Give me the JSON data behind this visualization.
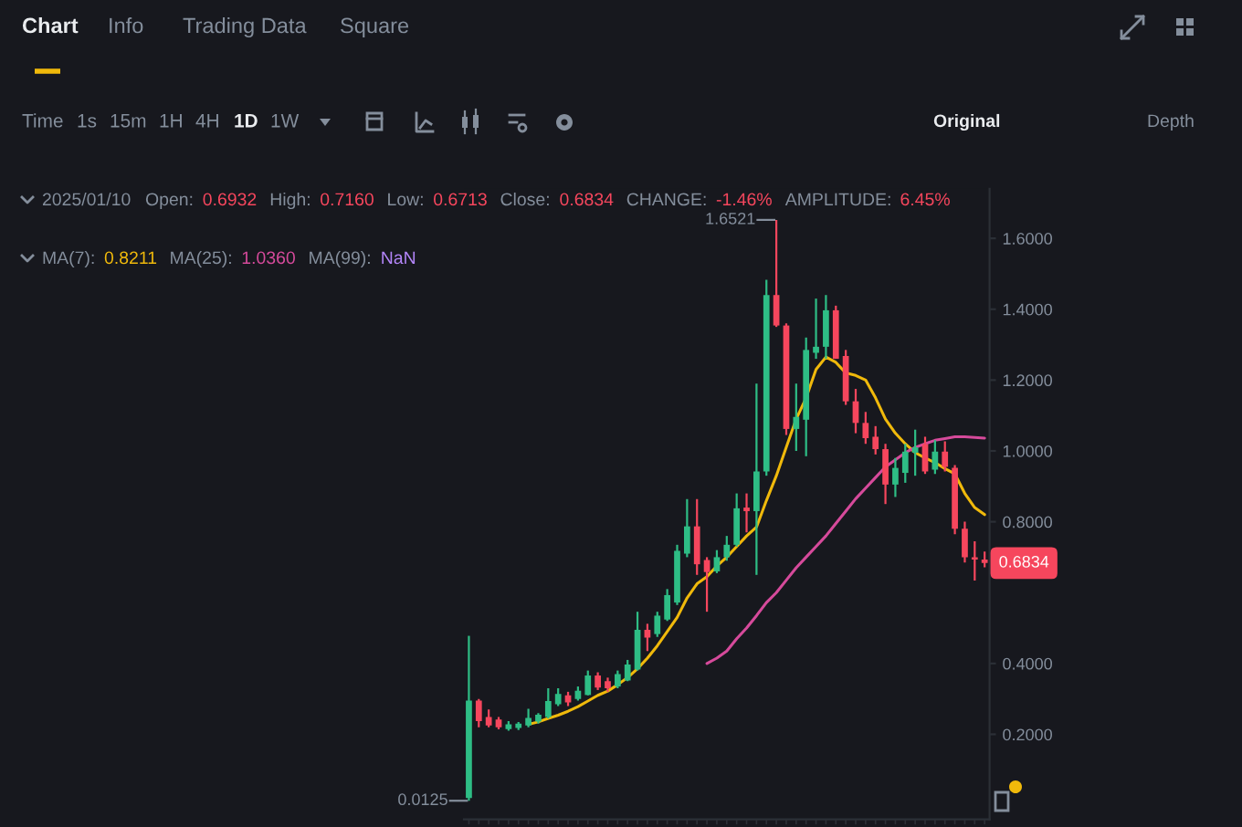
{
  "chart_data": {
    "type": "candlestick",
    "categories": [
      null,
      null,
      null,
      null,
      null,
      null,
      null,
      null,
      null,
      null,
      null,
      null,
      null,
      null,
      null,
      null,
      null,
      null,
      null,
      null,
      null,
      null,
      null,
      null,
      null,
      null,
      null,
      null,
      null,
      null,
      null,
      null,
      null,
      null,
      null,
      null,
      null,
      null,
      null,
      null,
      null,
      null,
      null,
      null,
      null,
      null,
      null,
      null,
      null,
      null,
      null,
      null,
      null
    ],
    "ohlc": [
      [
        0.02,
        0.478,
        0.0125,
        0.295
      ],
      [
        0.295,
        0.3,
        0.22,
        0.237
      ],
      [
        0.249,
        0.27,
        0.22,
        0.225
      ],
      [
        0.242,
        0.249,
        0.214,
        0.22
      ],
      [
        0.215,
        0.237,
        0.21,
        0.228
      ],
      [
        0.218,
        0.235,
        0.212,
        0.23
      ],
      [
        0.225,
        0.272,
        0.22,
        0.246
      ],
      [
        0.236,
        0.26,
        0.23,
        0.255
      ],
      [
        0.249,
        0.33,
        0.245,
        0.294
      ],
      [
        0.285,
        0.33,
        0.28,
        0.314
      ],
      [
        0.31,
        0.32,
        0.28,
        0.29
      ],
      [
        0.3,
        0.335,
        0.295,
        0.323
      ],
      [
        0.311,
        0.38,
        0.31,
        0.366
      ],
      [
        0.366,
        0.375,
        0.325,
        0.332
      ],
      [
        0.35,
        0.36,
        0.32,
        0.33
      ],
      [
        0.335,
        0.38,
        0.33,
        0.37
      ],
      [
        0.352,
        0.41,
        0.35,
        0.397
      ],
      [
        0.383,
        0.546,
        0.38,
        0.495
      ],
      [
        0.495,
        0.512,
        0.435,
        0.473
      ],
      [
        0.483,
        0.546,
        0.475,
        0.535
      ],
      [
        0.524,
        0.61,
        0.52,
        0.593
      ],
      [
        0.572,
        0.735,
        0.565,
        0.718
      ],
      [
        0.71,
        0.864,
        0.7,
        0.787
      ],
      [
        0.787,
        0.864,
        0.65,
        0.68
      ],
      [
        0.692,
        0.7,
        0.546,
        0.658
      ],
      [
        0.66,
        0.72,
        0.655,
        0.7
      ],
      [
        0.7,
        0.76,
        0.69,
        0.735
      ],
      [
        0.735,
        0.88,
        0.73,
        0.838
      ],
      [
        0.84,
        0.88,
        0.77,
        0.83
      ],
      [
        0.83,
        1.19,
        0.65,
        0.942
      ],
      [
        0.942,
        1.483,
        0.93,
        1.44
      ],
      [
        1.44,
        1.6521,
        1.35,
        1.354
      ],
      [
        1.354,
        1.36,
        1.045,
        1.062
      ],
      [
        1.062,
        1.19,
        1.0,
        1.096
      ],
      [
        1.088,
        1.32,
        0.985,
        1.285
      ],
      [
        1.277,
        1.43,
        1.26,
        1.294
      ],
      [
        1.294,
        1.44,
        1.26,
        1.397
      ],
      [
        1.397,
        1.41,
        1.26,
        1.26
      ],
      [
        1.268,
        1.285,
        1.13,
        1.14
      ],
      [
        1.14,
        1.175,
        1.05,
        1.079
      ],
      [
        1.079,
        1.11,
        1.02,
        1.036
      ],
      [
        1.04,
        1.07,
        0.99,
        1.005
      ],
      [
        1.005,
        1.02,
        0.85,
        0.905
      ],
      [
        0.905,
        0.98,
        0.87,
        0.952
      ],
      [
        0.938,
        1.02,
        0.91,
        0.998
      ],
      [
        0.995,
        1.06,
        0.93,
        1.01
      ],
      [
        1.019,
        1.04,
        0.935,
        0.942
      ],
      [
        0.947,
        1.03,
        0.935,
        0.998
      ],
      [
        0.998,
        1.027,
        0.942,
        0.955
      ],
      [
        0.952,
        0.96,
        0.765,
        0.78
      ],
      [
        0.78,
        0.8,
        0.685,
        0.7
      ],
      [
        0.7,
        0.745,
        0.634,
        0.6932
      ],
      [
        0.6932,
        0.716,
        0.6713,
        0.6834
      ]
    ],
    "colors": [
      "#2ebd85",
      "#f6465d",
      "#f6465d",
      "#f6465d",
      "#2ebd85",
      "#2ebd85",
      "#2ebd85",
      "#2ebd85",
      "#2ebd85",
      "#2ebd85",
      "#f6465d",
      "#2ebd85",
      "#2ebd85",
      "#f6465d",
      "#f6465d",
      "#2ebd85",
      "#2ebd85",
      "#2ebd85",
      "#f6465d",
      "#2ebd85",
      "#2ebd85",
      "#2ebd85",
      "#2ebd85",
      "#f6465d",
      "#f6465d",
      "#2ebd85",
      "#2ebd85",
      "#2ebd85",
      "#f6465d",
      "#2ebd85",
      "#2ebd85",
      "#f6465d",
      "#f6465d",
      "#2ebd85",
      "#2ebd85",
      "#2ebd85",
      "#2ebd85",
      "#f6465d",
      "#f6465d",
      "#f6465d",
      "#f6465d",
      "#f6465d",
      "#f6465d",
      "#2ebd85",
      "#2ebd85",
      "#2ebd85",
      "#f6465d",
      "#2ebd85",
      "#f6465d",
      "#f6465d",
      "#f6465d",
      "#f6465d",
      "#f6465d"
    ],
    "series": [
      {
        "type": "line",
        "color": "#f0b90b",
        "values": [
          null,
          null,
          null,
          null,
          null,
          null,
          0.228,
          0.235,
          0.245,
          0.254,
          0.265,
          0.278,
          0.294,
          0.31,
          0.322,
          0.34,
          0.36,
          0.385,
          0.415,
          0.45,
          0.49,
          0.53,
          0.585,
          0.625,
          0.645,
          0.675,
          0.7,
          0.73,
          0.76,
          0.785,
          0.86,
          0.93,
          1.01,
          1.09,
          1.15,
          1.23,
          1.265,
          1.25,
          1.22,
          1.213,
          1.2,
          1.15,
          1.09,
          1.05,
          1.02,
          0.995,
          0.98,
          0.967,
          0.95,
          0.935,
          0.88,
          0.84,
          0.82
        ]
      },
      {
        "type": "line",
        "color": "#d64a9b",
        "values": [
          null,
          null,
          null,
          null,
          null,
          null,
          null,
          null,
          null,
          null,
          null,
          null,
          null,
          null,
          null,
          null,
          null,
          null,
          null,
          null,
          null,
          null,
          null,
          null,
          0.4,
          0.415,
          0.435,
          0.47,
          0.5,
          0.535,
          0.572,
          0.6,
          0.635,
          0.67,
          0.7,
          0.73,
          0.76,
          0.795,
          0.83,
          0.865,
          0.895,
          0.925,
          0.955,
          0.975,
          0.995,
          1.01,
          1.02,
          1.03,
          1.035,
          1.04,
          1.04,
          1.038,
          1.036
        ]
      }
    ],
    "ylim": [
      -0.04,
      1.74
    ],
    "yticks": [
      {
        "value": 0.2,
        "label": "0.2000"
      },
      {
        "value": 0.4,
        "label": "0.4000"
      },
      {
        "value": 0.8,
        "label": "0.8000"
      },
      {
        "value": 1.0,
        "label": "1.0000"
      },
      {
        "value": 1.2,
        "label": "1.2000"
      },
      {
        "value": 1.4,
        "label": "1.4000"
      },
      {
        "value": 1.6,
        "label": "1.6000"
      }
    ],
    "tick_labels": "y",
    "annotations": [
      "Chart",
      "Info",
      "Trading Data",
      "Square",
      "Time",
      "1s",
      "15m",
      "1H",
      "4H",
      "1D",
      "1W",
      "Original",
      "Depth",
      "2025/01/10",
      "Open:",
      "0.6932",
      "High:",
      "0.7160",
      "Low:",
      "0.6713",
      "Close:",
      "0.6834",
      "CHANGE:",
      "-1.46%",
      "AMPLITUDE:",
      "6.45%",
      "MA(7):",
      "0.8211",
      "MA(25):",
      "1.0360",
      "MA(99):",
      "NaN",
      "1.6521",
      "0.0125",
      "0.6834"
    ]
  }
}
